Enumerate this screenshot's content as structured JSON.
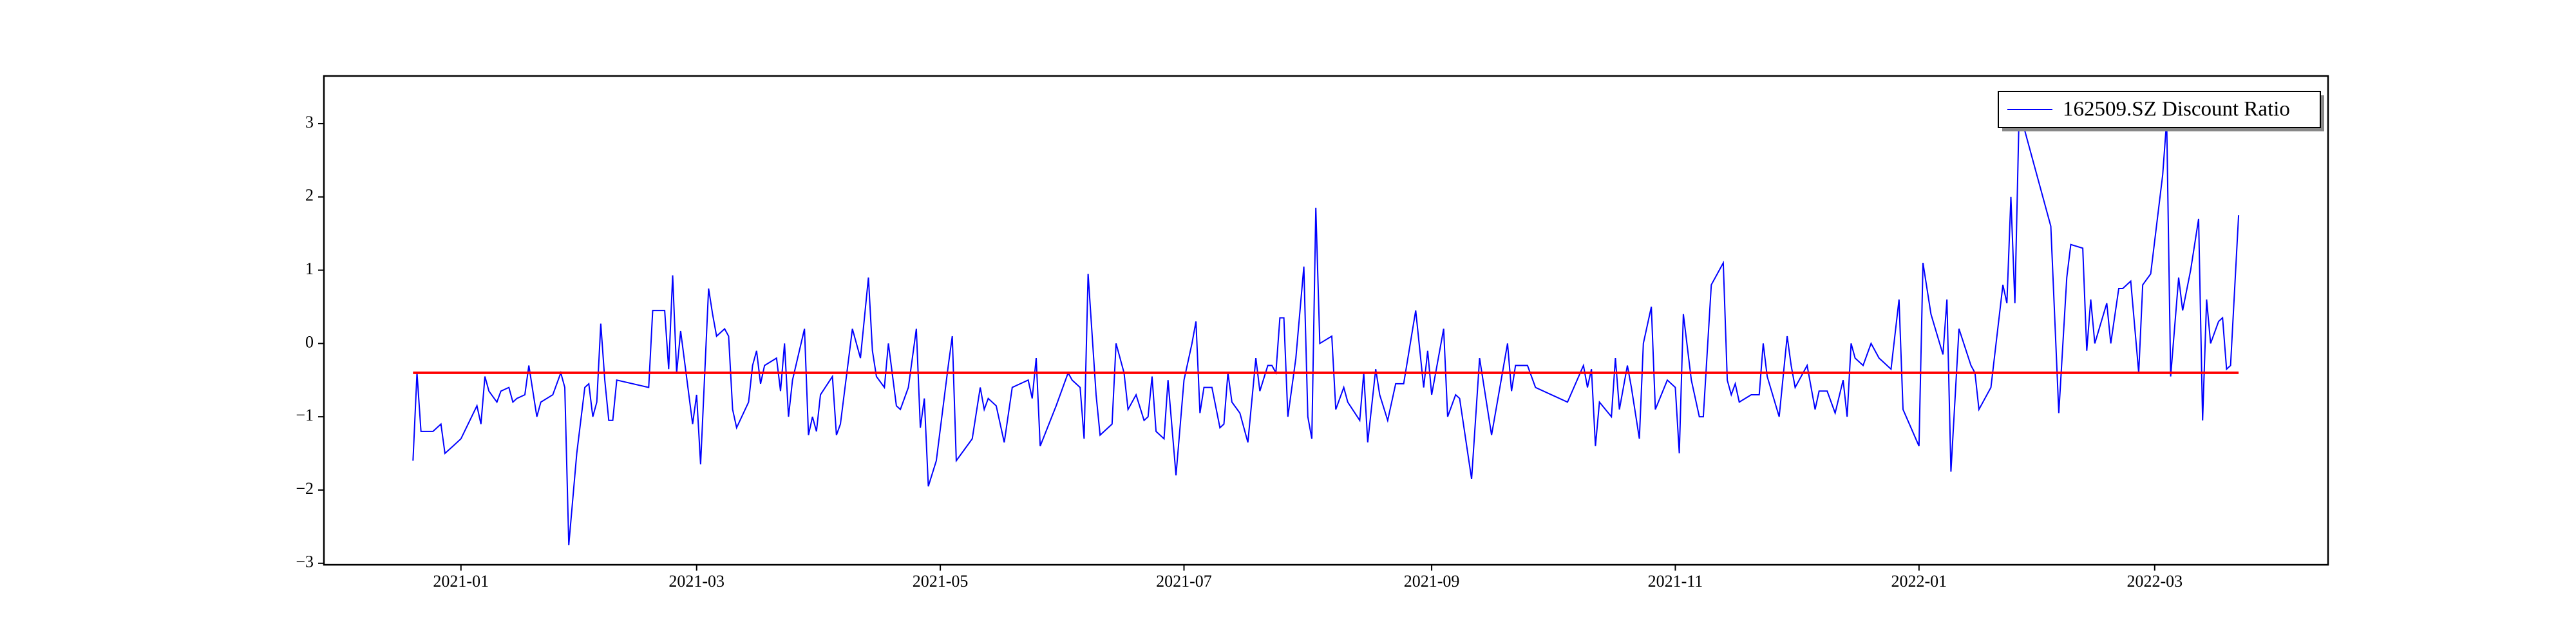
{
  "chart_data": {
    "type": "line",
    "x": [
      -12,
      -11,
      -10,
      -7,
      -5,
      -4,
      -2,
      0,
      4,
      5,
      6,
      7,
      9,
      10,
      12,
      13,
      14,
      16,
      17,
      19,
      20,
      23,
      25,
      26,
      27,
      29,
      31,
      32,
      33,
      34,
      35,
      36,
      37,
      38,
      39,
      47,
      48,
      51,
      52,
      53,
      54,
      55,
      58,
      59,
      60,
      62,
      63,
      64,
      66,
      67,
      68,
      69,
      72,
      73,
      74,
      75,
      76,
      79,
      80,
      81,
      82,
      83,
      86,
      87,
      88,
      89,
      90,
      93,
      94,
      95,
      98,
      100,
      102,
      103,
      104,
      106,
      107,
      109,
      110,
      112,
      114,
      115,
      116,
      117,
      119,
      122,
      123,
      124,
      128,
      130,
      131,
      132,
      134,
      136,
      138,
      140,
      142,
      143,
      144,
      145,
      149,
      152,
      153,
      155,
      156,
      157,
      159,
      160,
      163,
      164,
      166,
      167,
      169,
      171,
      172,
      173,
      174,
      176,
      177,
      179,
      181,
      183,
      184,
      185,
      186,
      188,
      190,
      191,
      192,
      193,
      195,
      197,
      199,
      200,
      202,
      203,
      204,
      205,
      206,
      207,
      209,
      211,
      212,
      213,
      214,
      215,
      218,
      219,
      221,
      222,
      225,
      226,
      227,
      229,
      230,
      232,
      234,
      236,
      239,
      241,
      242,
      243,
      246,
      247,
      249,
      250,
      253,
      255,
      258,
      262,
      263,
      264,
      267,
      269,
      277,
      281,
      282,
      283,
      284,
      285,
      288,
      289,
      290,
      292,
      293,
      295,
      296,
      298,
      299,
      302,
      304,
      305,
      306,
      308,
      310,
      311,
      313,
      316,
      317,
      318,
      319,
      320,
      323,
      325,
      326,
      327,
      330,
      332,
      333,
      334,
      337,
      339,
      340,
      342,
      344,
      346,
      347,
      348,
      349,
      351,
      353,
      355,
      358,
      360,
      361,
      365,
      366,
      368,
      371,
      372,
      373,
      375,
      378,
      379,
      380,
      383,
      386,
      387,
      388,
      389,
      390,
      391,
      398,
      400,
      402,
      403,
      406,
      407,
      408,
      409,
      412,
      413,
      415,
      416,
      418,
      420,
      421,
      423,
      426,
      427,
      428,
      430,
      431,
      433,
      435,
      436,
      437,
      438,
      440,
      441,
      442,
      443,
      445
    ],
    "series": [
      {
        "name": "162509.SZ Discount Ratio",
        "color": "#0000ff",
        "values": [
          -1.6,
          -0.4,
          -1.2,
          -1.2,
          -1.1,
          -1.5,
          -1.4,
          -1.3,
          -0.85,
          -1.1,
          -0.45,
          -0.65,
          -0.8,
          -0.65,
          -0.6,
          -0.8,
          -0.75,
          -0.7,
          -0.3,
          -1.0,
          -0.8,
          -0.7,
          -0.4,
          -0.6,
          -2.75,
          -1.5,
          -0.6,
          -0.55,
          -1.0,
          -0.8,
          0.27,
          -0.5,
          -1.05,
          -1.05,
          -0.5,
          -0.6,
          0.45,
          0.45,
          -0.35,
          0.93,
          -0.4,
          0.17,
          -1.1,
          -0.7,
          -1.65,
          0.75,
          0.4,
          0.1,
          0.2,
          0.1,
          -0.9,
          -1.15,
          -0.8,
          -0.3,
          -0.1,
          -0.55,
          -0.3,
          -0.2,
          -0.65,
          0.0,
          -1.0,
          -0.5,
          0.2,
          -1.25,
          -1.0,
          -1.2,
          -0.7,
          -0.45,
          -1.25,
          -1.1,
          0.2,
          -0.2,
          0.9,
          -0.1,
          -0.45,
          -0.6,
          0.0,
          -0.85,
          -0.9,
          -0.6,
          0.2,
          -1.15,
          -0.75,
          -1.95,
          -1.6,
          -0.3,
          0.1,
          -1.6,
          -1.3,
          -0.6,
          -0.9,
          -0.75,
          -0.85,
          -1.35,
          -0.6,
          -0.55,
          -0.5,
          -0.75,
          -0.2,
          -1.4,
          -0.85,
          -0.4,
          -0.5,
          -0.6,
          -1.3,
          0.95,
          -0.7,
          -1.25,
          -1.1,
          0.0,
          -0.4,
          -0.9,
          -0.7,
          -1.05,
          -1.0,
          -0.45,
          -1.2,
          -1.3,
          -0.5,
          -1.8,
          -0.5,
          0.0,
          0.3,
          -0.95,
          -0.6,
          -0.6,
          -1.15,
          -1.1,
          -0.4,
          -0.8,
          -0.95,
          -1.35,
          -0.2,
          -0.65,
          -0.3,
          -0.3,
          -0.4,
          0.35,
          0.35,
          -1.0,
          -0.2,
          1.05,
          -1.0,
          -1.3,
          1.85,
          0.0,
          0.1,
          -0.9,
          -0.6,
          -0.8,
          -1.05,
          -0.4,
          -1.35,
          -0.35,
          -0.7,
          -1.05,
          -0.55,
          -0.55,
          0.45,
          -0.6,
          -0.1,
          -0.7,
          0.2,
          -1.0,
          -0.7,
          -0.75,
          -1.85,
          -0.2,
          -1.25,
          0.0,
          -0.65,
          -0.3,
          -0.3,
          -0.6,
          -0.8,
          -0.3,
          -0.6,
          -0.35,
          -1.4,
          -0.8,
          -1.0,
          -0.2,
          -0.9,
          -0.3,
          -0.6,
          -1.3,
          0.0,
          0.5,
          -0.9,
          -0.5,
          -0.6,
          -1.5,
          0.4,
          -0.5,
          -1.0,
          -1.0,
          0.8,
          1.1,
          -0.5,
          -0.7,
          -0.55,
          -0.8,
          -0.7,
          -0.7,
          0.0,
          -0.45,
          -1.0,
          0.1,
          -0.3,
          -0.6,
          -0.3,
          -0.9,
          -0.65,
          -0.65,
          -0.95,
          -0.5,
          -1.0,
          0.0,
          -0.2,
          -0.3,
          0.0,
          -0.2,
          -0.35,
          0.6,
          -0.9,
          -1.4,
          1.1,
          0.4,
          -0.15,
          0.6,
          -1.75,
          0.2,
          -0.3,
          -0.4,
          -0.9,
          -0.6,
          0.8,
          0.55,
          2.0,
          0.55,
          3.0,
          3.0,
          1.6,
          -0.95,
          0.9,
          1.35,
          1.3,
          -0.1,
          0.6,
          0.0,
          0.55,
          0.0,
          0.75,
          0.75,
          0.85,
          -0.4,
          0.8,
          0.95,
          2.3,
          3.05,
          -0.45,
          0.9,
          0.45,
          1.0,
          1.7,
          -1.05,
          0.6,
          0.0,
          0.3,
          0.35,
          -0.35,
          -0.3,
          1.75
        ]
      }
    ],
    "mean_line": {
      "value": -0.4,
      "color": "#ff0000"
    },
    "xlim": [
      -34.3,
      467.4
    ],
    "xticks": [
      {
        "value": 0,
        "label": "2021-01"
      },
      {
        "value": 59,
        "label": "2021-03"
      },
      {
        "value": 120,
        "label": "2021-05"
      },
      {
        "value": 181,
        "label": "2021-07"
      },
      {
        "value": 243,
        "label": "2021-09"
      },
      {
        "value": 304,
        "label": "2021-11"
      },
      {
        "value": 365,
        "label": "2022-01"
      },
      {
        "value": 424,
        "label": "2022-03"
      }
    ],
    "ylim": [
      -3.02,
      3.65
    ],
    "yticks": [
      {
        "value": -3,
        "label": "−3"
      },
      {
        "value": -2,
        "label": "−2"
      },
      {
        "value": -1,
        "label": "−1"
      },
      0,
      1,
      2,
      3
    ],
    "legend": "upper right"
  }
}
